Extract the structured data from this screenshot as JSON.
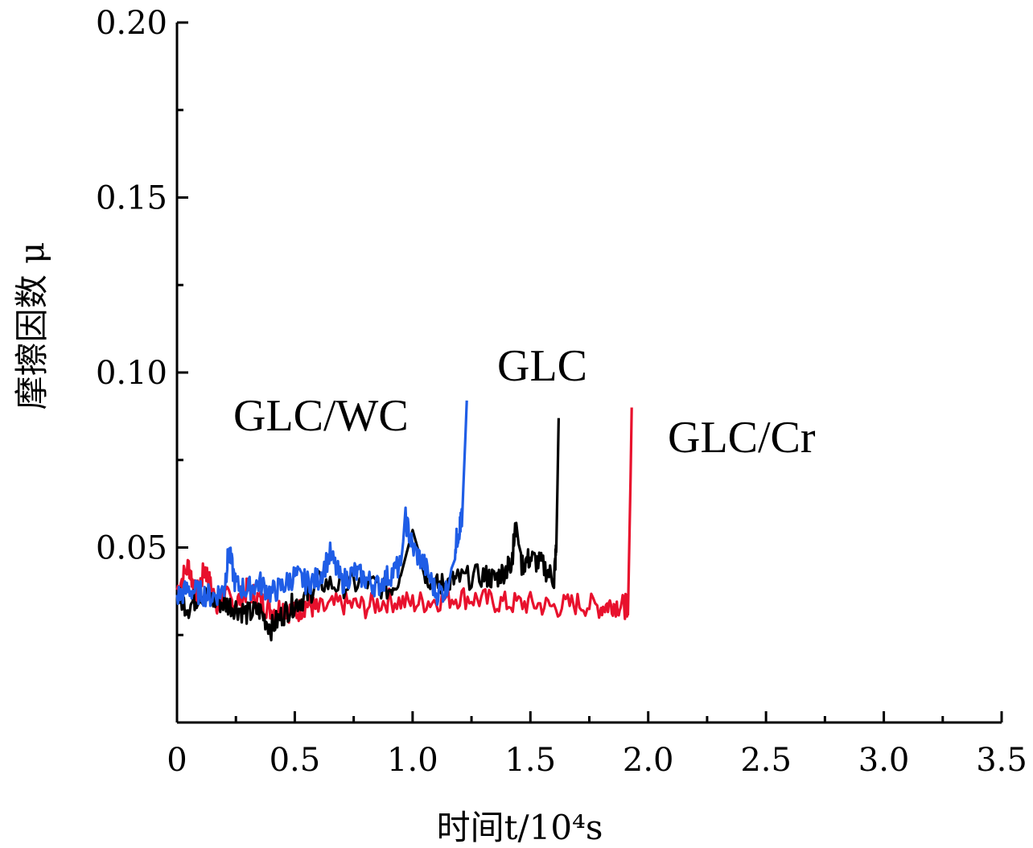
{
  "chart_data": {
    "type": "line",
    "xlabel": "时间t/10⁴s",
    "ylabel": "摩擦因数 μ",
    "xlim": [
      0,
      3.5
    ],
    "ylim": [
      0,
      0.2
    ],
    "x_ticks": [
      "0",
      "0.5",
      "1.0",
      "1.5",
      "2.0",
      "2.5",
      "3.0",
      "3.5"
    ],
    "y_ticks": [
      "0.05",
      "0.10",
      "0.15",
      "0.20"
    ],
    "grid": false,
    "series": [
      {
        "name": "GLC/Cr",
        "color": "#e8112d",
        "x": [
          0,
          0.05,
          0.08,
          0.12,
          0.15,
          0.18,
          0.2,
          0.25,
          0.3,
          0.35,
          0.4,
          0.45,
          0.5,
          0.55,
          0.6,
          0.7,
          0.8,
          0.9,
          1.0,
          1.1,
          1.2,
          1.3,
          1.4,
          1.5,
          1.6,
          1.7,
          1.8,
          1.85,
          1.9,
          1.915,
          1.925,
          1.93
        ],
        "y": [
          0.038,
          0.045,
          0.036,
          0.044,
          0.037,
          0.033,
          0.036,
          0.034,
          0.038,
          0.035,
          0.032,
          0.033,
          0.031,
          0.034,
          0.032,
          0.034,
          0.033,
          0.035,
          0.034,
          0.035,
          0.036,
          0.035,
          0.034,
          0.034,
          0.033,
          0.034,
          0.033,
          0.034,
          0.033,
          0.034,
          0.07,
          0.09
        ]
      },
      {
        "name": "GLC",
        "color": "#000000",
        "x": [
          0,
          0.05,
          0.1,
          0.15,
          0.2,
          0.25,
          0.3,
          0.35,
          0.4,
          0.45,
          0.5,
          0.55,
          0.6,
          0.7,
          0.8,
          0.9,
          0.95,
          1.0,
          1.05,
          1.1,
          1.15,
          1.2,
          1.3,
          1.35,
          1.4,
          1.42,
          1.44,
          1.46,
          1.5,
          1.55,
          1.6,
          1.61,
          1.62
        ],
        "y": [
          0.036,
          0.033,
          0.037,
          0.035,
          0.034,
          0.033,
          0.031,
          0.032,
          0.027,
          0.031,
          0.034,
          0.036,
          0.04,
          0.039,
          0.04,
          0.038,
          0.042,
          0.055,
          0.043,
          0.039,
          0.04,
          0.041,
          0.042,
          0.041,
          0.044,
          0.046,
          0.057,
          0.045,
          0.047,
          0.045,
          0.041,
          0.05,
          0.087
        ]
      },
      {
        "name": "GLC/WC",
        "color": "#1f5de6",
        "x": [
          0,
          0.05,
          0.1,
          0.15,
          0.2,
          0.22,
          0.25,
          0.3,
          0.35,
          0.4,
          0.45,
          0.5,
          0.55,
          0.6,
          0.65,
          0.7,
          0.75,
          0.8,
          0.85,
          0.9,
          0.95,
          0.97,
          1.0,
          1.05,
          1.1,
          1.15,
          1.18,
          1.2,
          1.21,
          1.22,
          1.23
        ],
        "y": [
          0.036,
          0.038,
          0.037,
          0.036,
          0.038,
          0.049,
          0.039,
          0.038,
          0.04,
          0.037,
          0.039,
          0.042,
          0.04,
          0.041,
          0.048,
          0.04,
          0.043,
          0.041,
          0.039,
          0.042,
          0.045,
          0.058,
          0.05,
          0.045,
          0.037,
          0.038,
          0.05,
          0.056,
          0.058,
          0.075,
          0.092
        ]
      }
    ],
    "annotations": [
      "GLC/WC",
      "GLC",
      "GLC/Cr"
    ]
  }
}
